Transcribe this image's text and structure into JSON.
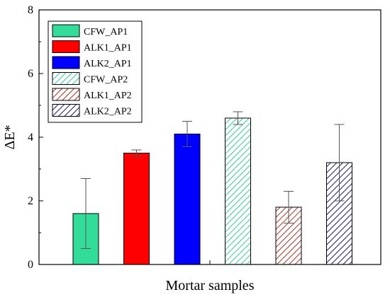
{
  "chart_data": {
    "type": "bar",
    "title": "",
    "xlabel": "Mortar samples",
    "ylabel": "ΔE*",
    "ylim": [
      0,
      8
    ],
    "yticks": [
      "0",
      "2",
      "4",
      "6",
      "8"
    ],
    "grid": false,
    "legend_position": "top-left",
    "series": [
      {
        "name": "CFW_AP1",
        "value": 1.6,
        "error": 1.1,
        "color": "#33dd99",
        "hatch": false
      },
      {
        "name": "ALK1_AP1",
        "value": 3.5,
        "error": 0.1,
        "color": "#ff0000",
        "hatch": false
      },
      {
        "name": "ALK2_AP1",
        "value": 4.1,
        "error": 0.4,
        "color": "#0000ff",
        "hatch": false
      },
      {
        "name": "CFW_AP2",
        "value": 4.6,
        "error": 0.2,
        "color": "#33cc99",
        "hatch": true
      },
      {
        "name": "ALK1_AP2",
        "value": 1.8,
        "error": 0.5,
        "color": "#aa3322",
        "hatch": true
      },
      {
        "name": "ALK2_AP2",
        "value": 3.2,
        "error": 1.2,
        "color": "#1a1a66",
        "hatch": true
      }
    ]
  }
}
